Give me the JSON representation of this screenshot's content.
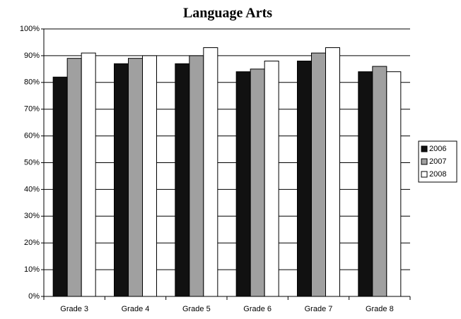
{
  "chart_data": {
    "type": "bar",
    "title": "Language Arts",
    "categories": [
      "Grade 3",
      "Grade 4",
      "Grade 5",
      "Grade 6",
      "Grade 7",
      "Grade 8"
    ],
    "series": [
      {
        "name": "2006",
        "color": "#111111",
        "values": [
          82,
          87,
          87,
          84,
          88,
          84
        ]
      },
      {
        "name": "2007",
        "color": "#a0a0a0",
        "values": [
          89,
          89,
          90,
          85,
          91,
          86
        ]
      },
      {
        "name": "2008",
        "color": "#ffffff",
        "values": [
          91,
          90,
          93,
          88,
          93,
          84
        ]
      }
    ],
    "ylim": [
      0,
      100
    ],
    "yticks": [
      {
        "value": 0,
        "label": "0%"
      },
      {
        "value": 10,
        "label": "10%"
      },
      {
        "value": 20,
        "label": "20%"
      },
      {
        "value": 30,
        "label": "30%"
      },
      {
        "value": 40,
        "label": "40%"
      },
      {
        "value": 50,
        "label": "50%"
      },
      {
        "value": 60,
        "label": "60%"
      },
      {
        "value": 70,
        "label": "70%"
      },
      {
        "value": 80,
        "label": "80%"
      },
      {
        "value": 90,
        "label": "90%"
      },
      {
        "value": 100,
        "label": "100%"
      }
    ],
    "grid": true,
    "legend": "right"
  }
}
